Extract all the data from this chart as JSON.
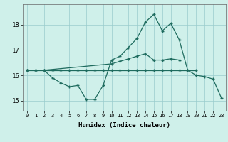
{
  "xlabel": "Humidex (Indice chaleur)",
  "x_ticks": [
    0,
    1,
    2,
    3,
    4,
    5,
    6,
    7,
    8,
    9,
    10,
    11,
    12,
    13,
    14,
    15,
    16,
    17,
    18,
    19,
    20,
    21,
    22,
    23
  ],
  "ylim": [
    14.6,
    18.8
  ],
  "yticks": [
    15,
    16,
    17,
    18
  ],
  "background_color": "#cff0ea",
  "grid_color": "#99cccc",
  "line_color": "#1e6b5e",
  "line1_x": [
    0,
    1,
    2,
    3,
    4,
    5,
    6,
    7,
    8,
    9,
    10,
    11,
    12,
    13,
    14,
    15,
    16,
    17,
    18,
    19,
    20
  ],
  "line1_y": [
    16.2,
    16.2,
    16.2,
    16.2,
    16.2,
    16.2,
    16.2,
    16.2,
    16.2,
    16.2,
    16.2,
    16.2,
    16.2,
    16.2,
    16.2,
    16.2,
    16.2,
    16.2,
    16.2,
    16.2,
    16.2
  ],
  "line2_x": [
    0,
    1,
    2,
    10,
    11,
    12,
    13,
    14,
    15,
    16,
    17,
    18
  ],
  "line2_y": [
    16.2,
    16.2,
    16.2,
    16.45,
    16.55,
    16.65,
    16.75,
    16.85,
    16.6,
    16.6,
    16.65,
    16.6
  ],
  "line3_x": [
    0,
    1,
    2,
    3,
    4,
    5,
    6,
    7,
    8,
    9,
    10,
    11,
    12,
    13,
    14,
    15,
    16,
    17,
    18,
    19,
    20,
    21,
    22,
    23
  ],
  "line3_y": [
    16.2,
    16.2,
    16.2,
    15.9,
    15.7,
    15.55,
    15.6,
    15.05,
    15.05,
    15.6,
    16.6,
    16.75,
    17.1,
    17.45,
    18.1,
    18.4,
    17.75,
    18.05,
    17.4,
    16.2,
    16.0,
    15.95,
    15.85,
    15.1
  ]
}
